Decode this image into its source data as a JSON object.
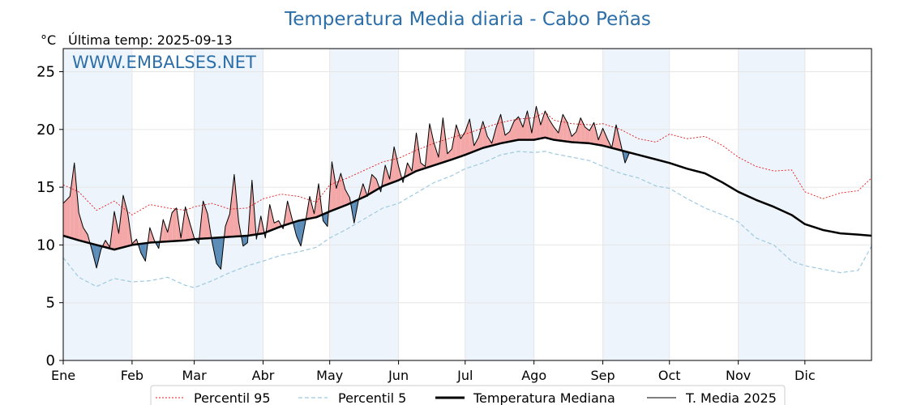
{
  "header": {
    "title": "Temperatura Media diaria - Cabo Peñas",
    "unit": "°C",
    "last_temp": "Última temp: 2025-09-13",
    "watermark": "WWW.EMBALSES.NET"
  },
  "colors": {
    "title": "#2c6fa8",
    "p95": "#e41a1c",
    "p5": "#9ecae1",
    "median": "#000000",
    "current": "#000000",
    "above_fill": "#f4a7a7",
    "below_fill": "#5b8db8",
    "month_shade": "#eef4fb"
  },
  "chart_data": {
    "type": "line",
    "title": "Temperatura Media diaria - Cabo Peñas",
    "ylabel": "°C",
    "ylim": [
      0,
      27
    ],
    "yticks": [
      0,
      5,
      10,
      15,
      20,
      25
    ],
    "x_unit": "day of year",
    "xlim": [
      1,
      365
    ],
    "months": [
      {
        "label": "Ene",
        "start": 1
      },
      {
        "label": "Feb",
        "start": 32
      },
      {
        "label": "Mar",
        "start": 60
      },
      {
        "label": "Abr",
        "start": 91
      },
      {
        "label": "May",
        "start": 121
      },
      {
        "label": "Jun",
        "start": 152
      },
      {
        "label": "Jul",
        "start": 182
      },
      {
        "label": "Ago",
        "start": 213
      },
      {
        "label": "Sep",
        "start": 244
      },
      {
        "label": "Oct",
        "start": 274
      },
      {
        "label": "Nov",
        "start": 305
      },
      {
        "label": "Dic",
        "start": 335
      }
    ],
    "legend_position": "bottom-center",
    "grid": true,
    "series": [
      {
        "name": "Percentil 95",
        "style": "dotted-red",
        "x": [
          1,
          8,
          16,
          24,
          32,
          40,
          48,
          56,
          60,
          68,
          76,
          84,
          91,
          99,
          107,
          115,
          121,
          129,
          137,
          145,
          152,
          160,
          168,
          176,
          182,
          190,
          198,
          206,
          213,
          218,
          222,
          230,
          238,
          244,
          252,
          260,
          268,
          274,
          282,
          290,
          298,
          305,
          313,
          321,
          329,
          335,
          343,
          351,
          359,
          365
        ],
        "values": [
          15.2,
          14.6,
          13.0,
          13.8,
          12.6,
          13.5,
          13.2,
          13.0,
          13.3,
          13.6,
          13.1,
          13.2,
          14.0,
          14.4,
          14.2,
          13.7,
          15.2,
          15.8,
          16.5,
          17.2,
          17.5,
          18.2,
          18.8,
          19.3,
          19.6,
          20.1,
          20.6,
          20.9,
          21.0,
          21.5,
          20.8,
          20.5,
          20.4,
          20.5,
          20.0,
          19.2,
          18.9,
          19.6,
          19.2,
          19.4,
          18.6,
          17.6,
          16.8,
          16.4,
          16.5,
          14.6,
          14.0,
          14.5,
          14.7,
          15.8
        ]
      },
      {
        "name": "Percentil 5",
        "style": "dashed-lightblue",
        "x": [
          1,
          8,
          16,
          24,
          32,
          40,
          48,
          56,
          60,
          68,
          76,
          84,
          91,
          99,
          107,
          115,
          121,
          129,
          137,
          145,
          152,
          160,
          168,
          176,
          182,
          190,
          198,
          206,
          213,
          218,
          222,
          230,
          238,
          244,
          252,
          260,
          268,
          274,
          282,
          290,
          298,
          305,
          313,
          321,
          329,
          335,
          343,
          351,
          359,
          365
        ],
        "values": [
          8.9,
          7.2,
          6.4,
          7.1,
          6.8,
          6.9,
          7.2,
          6.5,
          6.3,
          6.9,
          7.6,
          8.2,
          8.6,
          9.1,
          9.4,
          9.8,
          10.6,
          11.4,
          12.3,
          13.2,
          13.6,
          14.5,
          15.4,
          16.0,
          16.6,
          17.1,
          17.8,
          18.1,
          18.0,
          18.1,
          17.9,
          17.6,
          17.3,
          16.8,
          16.2,
          15.8,
          15.1,
          14.9,
          14.0,
          13.2,
          12.6,
          12.0,
          10.6,
          10.0,
          8.6,
          8.2,
          7.9,
          7.6,
          7.8,
          9.9
        ]
      },
      {
        "name": "Temperatura Mediana",
        "style": "thick-black",
        "x": [
          1,
          8,
          16,
          24,
          32,
          40,
          48,
          56,
          60,
          68,
          76,
          84,
          91,
          99,
          107,
          115,
          121,
          129,
          137,
          145,
          152,
          160,
          168,
          176,
          182,
          190,
          198,
          206,
          213,
          218,
          222,
          230,
          238,
          244,
          252,
          260,
          268,
          274,
          282,
          290,
          298,
          305,
          313,
          321,
          329,
          335,
          343,
          351,
          359,
          365
        ],
        "values": [
          10.8,
          10.4,
          10.0,
          9.6,
          10.0,
          10.2,
          10.3,
          10.4,
          10.5,
          10.6,
          10.7,
          10.8,
          11.0,
          11.6,
          12.1,
          12.4,
          12.9,
          13.5,
          14.2,
          15.1,
          15.6,
          16.4,
          16.9,
          17.4,
          17.8,
          18.4,
          18.8,
          19.1,
          19.1,
          19.3,
          19.1,
          18.9,
          18.8,
          18.6,
          18.2,
          17.8,
          17.4,
          17.1,
          16.6,
          16.2,
          15.4,
          14.6,
          13.9,
          13.3,
          12.6,
          11.8,
          11.3,
          11.0,
          10.9,
          10.8
        ]
      },
      {
        "name": "T. Media 2025",
        "style": "thin-black",
        "x": [
          1,
          4,
          6,
          8,
          10,
          12,
          14,
          16,
          18,
          20,
          22,
          24,
          26,
          28,
          30,
          32,
          34,
          36,
          38,
          40,
          42,
          44,
          46,
          48,
          50,
          52,
          54,
          56,
          58,
          60,
          62,
          64,
          66,
          68,
          70,
          72,
          74,
          76,
          78,
          80,
          82,
          84,
          86,
          88,
          90,
          92,
          94,
          96,
          98,
          100,
          102,
          104,
          106,
          108,
          110,
          112,
          114,
          116,
          118,
          120,
          122,
          124,
          126,
          128,
          130,
          132,
          134,
          136,
          138,
          140,
          142,
          144,
          146,
          148,
          150,
          152,
          154,
          156,
          158,
          160,
          162,
          164,
          166,
          168,
          170,
          172,
          174,
          176,
          178,
          180,
          182,
          184,
          186,
          188,
          190,
          192,
          194,
          196,
          198,
          200,
          202,
          204,
          206,
          208,
          210,
          212,
          214,
          216,
          218,
          220,
          222,
          224,
          226,
          228,
          230,
          232,
          234,
          236,
          238,
          240,
          242,
          244,
          246,
          248,
          250,
          252,
          254,
          256
        ],
        "values": [
          13.6,
          14.2,
          17.1,
          12.8,
          11.5,
          10.9,
          9.5,
          8.0,
          9.6,
          10.4,
          9.8,
          12.9,
          11.0,
          14.3,
          12.8,
          10.1,
          10.5,
          9.3,
          8.6,
          11.5,
          10.4,
          9.7,
          12.2,
          11.1,
          12.8,
          13.2,
          10.6,
          13.3,
          11.9,
          10.6,
          10.1,
          13.8,
          12.7,
          10.3,
          8.4,
          7.9,
          11.6,
          12.7,
          16.1,
          12.0,
          9.9,
          10.2,
          15.6,
          10.5,
          12.5,
          10.6,
          13.5,
          11.9,
          12.1,
          11.4,
          13.8,
          12.3,
          10.8,
          9.9,
          11.9,
          14.2,
          12.7,
          15.3,
          12.1,
          11.6,
          17.2,
          14.9,
          16.2,
          14.8,
          14.1,
          11.9,
          13.9,
          15.3,
          14.2,
          16.1,
          15.7,
          14.6,
          16.9,
          15.7,
          18.5,
          16.8,
          15.4,
          17.1,
          16.4,
          19.7,
          17.1,
          16.8,
          20.5,
          18.8,
          17.6,
          21.0,
          17.9,
          18.3,
          20.4,
          19.2,
          19.8,
          20.9,
          18.6,
          19.3,
          20.7,
          19.4,
          18.8,
          20.2,
          21.3,
          19.5,
          19.8,
          20.7,
          21.1,
          20.2,
          21.6,
          19.7,
          22.0,
          20.4,
          21.6,
          20.8,
          20.2,
          19.7,
          21.3,
          20.6,
          19.4,
          19.8,
          21.0,
          20.2,
          19.9,
          20.6,
          19.1,
          20.1,
          19.2,
          18.4,
          20.4,
          18.8,
          17.1,
          18.0
        ]
      }
    ]
  },
  "legend": [
    {
      "label": "Percentil 95",
      "series": 0
    },
    {
      "label": "Percentil 5",
      "series": 1
    },
    {
      "label": "Temperatura Mediana",
      "series": 2
    },
    {
      "label": "T. Media 2025",
      "series": 3
    }
  ]
}
